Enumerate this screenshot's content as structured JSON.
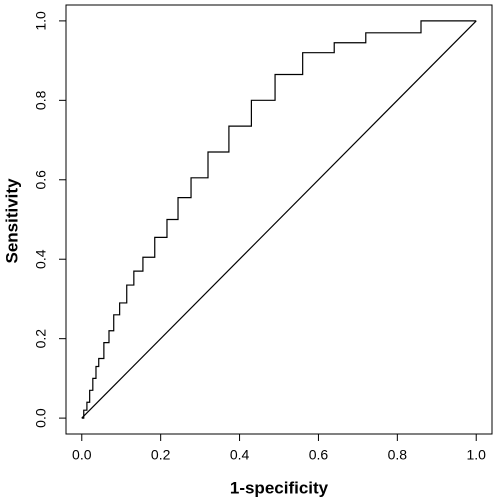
{
  "chart_data": {
    "type": "line",
    "x_label": "1-specificity",
    "y_label": "Sensitivity",
    "xlim": [
      -0.04,
      1.04
    ],
    "ylim": [
      -0.04,
      1.04
    ],
    "xticks": [
      {
        "value": 0,
        "label": "0.0"
      },
      {
        "value": 0.2,
        "label": "0.2"
      },
      {
        "value": 0.4,
        "label": "0.4"
      },
      {
        "value": 0.6,
        "label": "0.6"
      },
      {
        "value": 0.8,
        "label": "0.8"
      },
      {
        "value": 1,
        "label": "1.0"
      }
    ],
    "yticks": [
      {
        "value": 0,
        "label": "0.0"
      },
      {
        "value": 0.2,
        "label": "0.2"
      },
      {
        "value": 0.4,
        "label": "0.4"
      },
      {
        "value": 0.6,
        "label": "0.6"
      },
      {
        "value": 0.8,
        "label": "0.8"
      },
      {
        "value": 1,
        "label": "1.0"
      }
    ],
    "series": [
      {
        "color": "#000000",
        "x": [
          0,
          0.005,
          0.005,
          0.013,
          0.013,
          0.02,
          0.02,
          0.028,
          0.028,
          0.036,
          0.036,
          0.043,
          0.043,
          0.056,
          0.056,
          0.069,
          0.069,
          0.081,
          0.081,
          0.096,
          0.096,
          0.114,
          0.114,
          0.132,
          0.132,
          0.155,
          0.155,
          0.185,
          0.185,
          0.216,
          0.216,
          0.244,
          0.244,
          0.277,
          0.277,
          0.32,
          0.32,
          0.373,
          0.373,
          0.43,
          0.43,
          0.49,
          0.49,
          0.56,
          0.56,
          0.64,
          0.64,
          0.72,
          0.72,
          0.86,
          0.86,
          1
        ],
        "values": [
          0,
          0,
          0.02,
          0.02,
          0.04,
          0.04,
          0.07,
          0.07,
          0.1,
          0.1,
          0.13,
          0.13,
          0.15,
          0.15,
          0.19,
          0.19,
          0.22,
          0.22,
          0.26,
          0.26,
          0.29,
          0.29,
          0.335,
          0.335,
          0.37,
          0.37,
          0.405,
          0.405,
          0.455,
          0.455,
          0.5,
          0.5,
          0.555,
          0.555,
          0.605,
          0.605,
          0.67,
          0.67,
          0.735,
          0.735,
          0.8,
          0.8,
          0.865,
          0.865,
          0.92,
          0.92,
          0.945,
          0.945,
          0.97,
          0.97,
          1,
          1
        ]
      }
    ],
    "reference_line": {
      "x": [
        0,
        1
      ],
      "values": [
        0,
        1
      ]
    }
  }
}
